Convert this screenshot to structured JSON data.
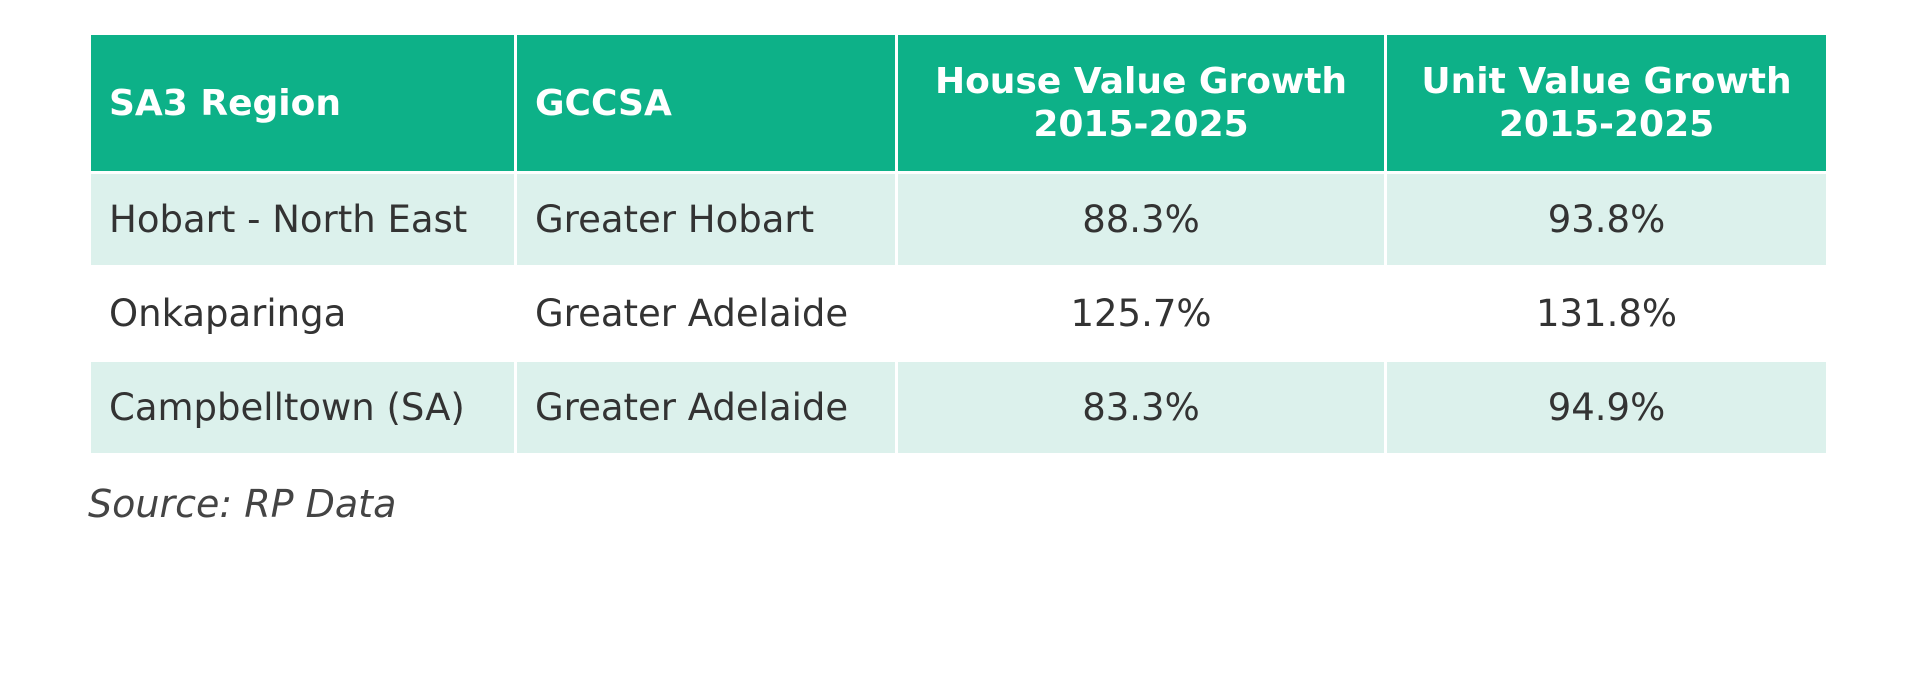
{
  "table": {
    "headers": [
      "SA3 Region",
      "GCCSA",
      "House Value Growth 2015-2025",
      "Unit Value Growth 2015-2025"
    ],
    "rows": [
      [
        "Hobart - North East",
        "Greater Hobart",
        "88.3%",
        "93.8%"
      ],
      [
        "Onkaparinga",
        "Greater Adelaide",
        "125.7%",
        "131.8%"
      ],
      [
        "Campbelltown (SA)",
        "Greater Adelaide",
        "83.3%",
        "94.9%"
      ]
    ]
  },
  "source": "Source: RP Data",
  "colors": {
    "header_bg": "#0db188",
    "row_shade": "#dcf1ec"
  }
}
